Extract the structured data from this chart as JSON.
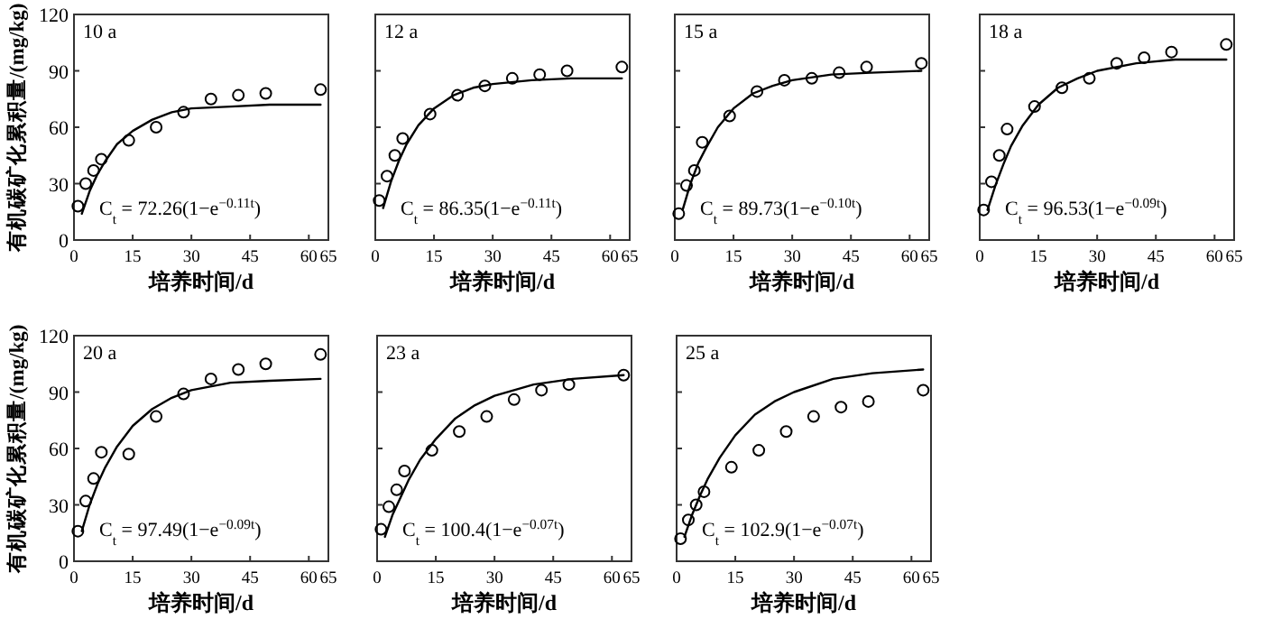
{
  "chart_data": [
    {
      "type": "scatter",
      "title": "10 a",
      "xlabel": "培养时间/d",
      "ylabel": "有机碳矿化累积量/(mg/kg)",
      "annotations": [
        "C$_{t}$ = 72.26(1−e$^{−0.11t}$)"
      ],
      "xlim": [
        0,
        65
      ],
      "ylim": [
        0,
        120
      ],
      "xticks": [
        0,
        15,
        30,
        45,
        60,
        65
      ],
      "yticks": [
        0,
        30,
        60,
        90,
        120
      ],
      "series": [
        {
          "type": "scatter",
          "marker": "circle",
          "color": "#000000",
          "x": [
            1,
            3,
            5,
            7,
            14,
            21,
            28,
            35,
            42,
            49,
            63
          ],
          "values": [
            18,
            30,
            37,
            43,
            53,
            60,
            68,
            75,
            77,
            78,
            80
          ]
        },
        {
          "type": "line",
          "color": "#000000",
          "x": [
            2,
            4,
            6,
            8,
            11,
            15,
            20,
            25,
            30,
            40,
            50,
            63
          ],
          "values": [
            14,
            26,
            35,
            42,
            51,
            58,
            64,
            68,
            70,
            71,
            72,
            72
          ]
        }
      ]
    },
    {
      "type": "scatter",
      "title": "12 a",
      "xlabel": "培养时间/d",
      "annotations": [
        "C$_{t}$ = 86.35(1−e$^{−0.11t}$)"
      ],
      "xlim": [
        0,
        65
      ],
      "ylim": [
        0,
        120
      ],
      "xticks": [
        0,
        15,
        30,
        45,
        60,
        65
      ],
      "yticks": [
        0,
        30,
        60,
        90,
        120
      ],
      "tick_labels": "x",
      "series": [
        {
          "type": "scatter",
          "marker": "circle",
          "color": "#000000",
          "x": [
            1,
            3,
            5,
            7,
            14,
            21,
            28,
            35,
            42,
            49,
            63
          ],
          "values": [
            21,
            34,
            45,
            54,
            67,
            77,
            82,
            86,
            88,
            90,
            92
          ]
        },
        {
          "type": "line",
          "color": "#000000",
          "x": [
            2,
            4,
            6,
            8,
            11,
            15,
            20,
            25,
            30,
            40,
            50,
            63
          ],
          "values": [
            17,
            31,
            42,
            51,
            61,
            70,
            77,
            81,
            83,
            85,
            86,
            86
          ]
        }
      ]
    },
    {
      "type": "scatter",
      "title": "15 a",
      "xlabel": "培养时间/d",
      "annotations": [
        "C$_{t}$ = 89.73(1−e$^{−0.10t}$)"
      ],
      "xlim": [
        0,
        65
      ],
      "ylim": [
        0,
        120
      ],
      "xticks": [
        0,
        15,
        30,
        45,
        60,
        65
      ],
      "yticks": [
        0,
        30,
        60,
        90,
        120
      ],
      "tick_labels": "x",
      "series": [
        {
          "type": "scatter",
          "marker": "circle",
          "color": "#000000",
          "x": [
            1,
            3,
            5,
            7,
            14,
            21,
            28,
            35,
            42,
            49,
            63
          ],
          "values": [
            14,
            29,
            37,
            52,
            66,
            79,
            85,
            86,
            89,
            92,
            94
          ]
        },
        {
          "type": "line",
          "color": "#000000",
          "x": [
            2,
            4,
            6,
            8,
            11,
            15,
            20,
            25,
            30,
            40,
            50,
            63
          ],
          "values": [
            16,
            30,
            41,
            49,
            60,
            70,
            78,
            82,
            85,
            88,
            89,
            90
          ]
        }
      ]
    },
    {
      "type": "scatter",
      "title": "18 a",
      "xlabel": "培养时间/d",
      "annotations": [
        "C$_{t}$ = 96.53(1−e$^{−0.09t}$)"
      ],
      "xlim": [
        0,
        65
      ],
      "ylim": [
        0,
        120
      ],
      "xticks": [
        0,
        15,
        30,
        45,
        60,
        65
      ],
      "yticks": [
        0,
        30,
        60,
        90,
        120
      ],
      "tick_labels": "x",
      "series": [
        {
          "type": "scatter",
          "marker": "circle",
          "color": "#000000",
          "x": [
            1,
            3,
            5,
            7,
            14,
            21,
            28,
            35,
            42,
            49,
            63
          ],
          "values": [
            16,
            31,
            45,
            59,
            71,
            81,
            86,
            94,
            97,
            100,
            104
          ]
        },
        {
          "type": "line",
          "color": "#000000",
          "x": [
            2,
            4,
            6,
            8,
            11,
            15,
            20,
            25,
            30,
            40,
            50,
            63
          ],
          "values": [
            16,
            29,
            40,
            50,
            61,
            72,
            81,
            86,
            90,
            94,
            96,
            96
          ]
        }
      ]
    },
    {
      "type": "scatter",
      "title": "20 a",
      "xlabel": "培养时间/d",
      "ylabel": "有机碳矿化累积量/(mg/kg)",
      "annotations": [
        "C$_{t}$ = 97.49(1−e$^{−0.09t}$)"
      ],
      "xlim": [
        0,
        65
      ],
      "ylim": [
        0,
        120
      ],
      "xticks": [
        0,
        15,
        30,
        45,
        60,
        65
      ],
      "yticks": [
        0,
        30,
        60,
        90,
        120
      ],
      "series": [
        {
          "type": "scatter",
          "marker": "circle",
          "color": "#000000",
          "x": [
            1,
            3,
            5,
            7,
            14,
            21,
            28,
            35,
            42,
            49,
            63
          ],
          "values": [
            16,
            32,
            44,
            58,
            57,
            77,
            89,
            97,
            102,
            105,
            110
          ]
        },
        {
          "type": "line",
          "color": "#000000",
          "x": [
            2,
            4,
            6,
            8,
            11,
            15,
            20,
            25,
            30,
            40,
            50,
            63
          ],
          "values": [
            16,
            30,
            41,
            50,
            61,
            72,
            81,
            87,
            91,
            95,
            96,
            97
          ]
        }
      ]
    },
    {
      "type": "scatter",
      "title": "23 a",
      "xlabel": "培养时间/d",
      "annotations": [
        "C$_{t}$ = 100.4(1−e$^{−0.07t}$)"
      ],
      "xlim": [
        0,
        65
      ],
      "ylim": [
        0,
        120
      ],
      "xticks": [
        0,
        15,
        30,
        45,
        60,
        65
      ],
      "yticks": [
        0,
        30,
        60,
        90,
        120
      ],
      "tick_labels": "x",
      "series": [
        {
          "type": "scatter",
          "marker": "circle",
          "color": "#000000",
          "x": [
            1,
            3,
            5,
            7,
            14,
            21,
            28,
            35,
            42,
            49,
            63
          ],
          "values": [
            17,
            29,
            38,
            48,
            59,
            69,
            77,
            86,
            91,
            94,
            99
          ]
        },
        {
          "type": "line",
          "color": "#000000",
          "x": [
            2,
            4,
            6,
            8,
            11,
            15,
            20,
            25,
            30,
            40,
            50,
            63
          ],
          "values": [
            13,
            25,
            34,
            43,
            54,
            65,
            76,
            83,
            88,
            94,
            97,
            99
          ]
        }
      ]
    },
    {
      "type": "scatter",
      "title": "25 a",
      "xlabel": "培养时间/d",
      "annotations": [
        "C$_{t}$ = 102.9(1−e$^{−0.07t}$)"
      ],
      "xlim": [
        0,
        65
      ],
      "ylim": [
        0,
        120
      ],
      "xticks": [
        0,
        15,
        30,
        45,
        60,
        65
      ],
      "yticks": [
        0,
        30,
        60,
        90,
        120
      ],
      "tick_labels": "x",
      "series": [
        {
          "type": "scatter",
          "marker": "circle",
          "color": "#000000",
          "x": [
            1,
            3,
            5,
            7,
            14,
            21,
            28,
            35,
            42,
            49,
            63
          ],
          "values": [
            12,
            22,
            30,
            37,
            50,
            59,
            69,
            77,
            82,
            85,
            91
          ]
        },
        {
          "type": "line",
          "color": "#000000",
          "x": [
            2,
            4,
            6,
            8,
            11,
            15,
            20,
            25,
            30,
            40,
            50,
            63
          ],
          "values": [
            13,
            25,
            35,
            44,
            55,
            67,
            78,
            85,
            90,
            97,
            100,
            102
          ]
        }
      ]
    }
  ]
}
